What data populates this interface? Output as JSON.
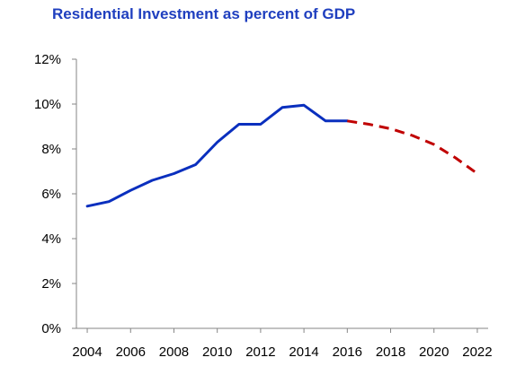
{
  "chart_data": {
    "type": "line",
    "title": "Residential Investment as percent of GDP",
    "xlabel": "",
    "ylabel": "",
    "x": [
      2004,
      2005,
      2006,
      2007,
      2008,
      2009,
      2010,
      2011,
      2012,
      2013,
      2014,
      2015,
      2016,
      2017,
      2018,
      2019,
      2020,
      2021,
      2022
    ],
    "xlim": [
      2003.5,
      2022.5
    ],
    "ylim": [
      0,
      12
    ],
    "x_ticks": [
      "2004",
      "2006",
      "2008",
      "2010",
      "2012",
      "2014",
      "2016",
      "2018",
      "2020",
      "2022"
    ],
    "y_ticks": [
      "0%",
      "2%",
      "4%",
      "6%",
      "8%",
      "10%",
      "12%"
    ],
    "grid": false,
    "legend": "none",
    "series": [
      {
        "style": "solid",
        "color": "#0a2fbe",
        "points": [
          [
            2004,
            5.45
          ],
          [
            2005,
            5.65
          ],
          [
            2006,
            6.15
          ],
          [
            2007,
            6.6
          ],
          [
            2008,
            6.9
          ],
          [
            2009,
            7.3
          ],
          [
            2010,
            8.3
          ],
          [
            2011,
            9.1
          ],
          [
            2012,
            9.1
          ],
          [
            2013,
            9.85
          ],
          [
            2014,
            9.95
          ],
          [
            2015,
            9.25
          ],
          [
            2016,
            9.25
          ]
        ]
      },
      {
        "style": "dashed",
        "color": "#c00000",
        "points": [
          [
            2016,
            9.25
          ],
          [
            2017,
            9.1
          ],
          [
            2018,
            8.9
          ],
          [
            2019,
            8.6
          ],
          [
            2020,
            8.2
          ],
          [
            2021,
            7.6
          ],
          [
            2022,
            6.9
          ]
        ]
      }
    ]
  }
}
